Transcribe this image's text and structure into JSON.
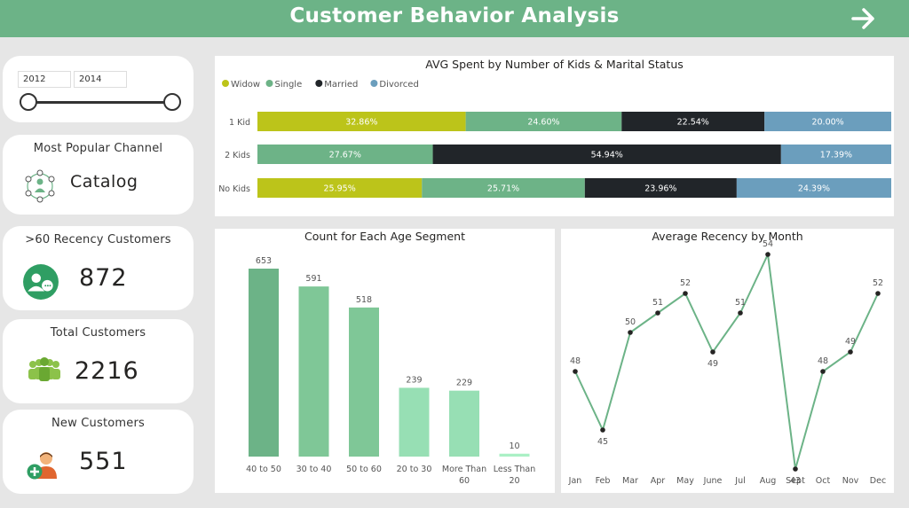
{
  "header": {
    "title": "Customer Behavior Analysis"
  },
  "colors": {
    "widow": "#bcc41a",
    "single": "#6db387",
    "married": "#212529",
    "divorced": "#6b9ebd",
    "bar_dark": "#6cb387",
    "bar_mid": "#7fc797",
    "bar_light": "#97dfb4",
    "bar_lightest": "#aaf0c5",
    "line": "#6cb387"
  },
  "slicer": {
    "start": "2012",
    "end": "2014"
  },
  "cards": {
    "channel": {
      "title": "Most Popular Channel",
      "value": "Catalog",
      "icon": "catalog-network-icon"
    },
    "recency": {
      "title": ">60 Recency Customers",
      "value": "872",
      "icon": "customer-service-icon"
    },
    "total": {
      "title": "Total Customers",
      "value": "2216",
      "icon": "people-group-icon"
    },
    "new": {
      "title": "New Customers",
      "value": "551",
      "icon": "add-user-icon"
    }
  },
  "chart_data": [
    {
      "type": "bar",
      "orientation": "horizontal-stacked-100",
      "title": "AVG Spent by Number of Kids & Marital Status",
      "legend_position": "top-left",
      "categories": [
        "1 Kid",
        "2 Kids",
        "No Kids"
      ],
      "series": [
        {
          "name": "Widow",
          "values": [
            32.86,
            0,
            25.95
          ],
          "labels": [
            "32.86%",
            "",
            "25.95%"
          ]
        },
        {
          "name": "Single",
          "values": [
            24.6,
            27.67,
            25.71
          ],
          "labels": [
            "24.60%",
            "27.67%",
            "25.71%"
          ]
        },
        {
          "name": "Married",
          "values": [
            22.54,
            54.94,
            23.96
          ],
          "labels": [
            "22.54%",
            "54.94%",
            "23.96%"
          ]
        },
        {
          "name": "Divorced",
          "values": [
            20.0,
            17.39,
            24.39
          ],
          "labels": [
            "20.00%",
            "17.39%",
            "24.39%"
          ]
        }
      ]
    },
    {
      "type": "bar",
      "title": "Count for Each Age Segment",
      "categories": [
        "40 to 50",
        "30 to 40",
        "50 to 60",
        "20 to 30",
        "More Than 60",
        "Less Than 20"
      ],
      "values": [
        653,
        591,
        518,
        239,
        229,
        10
      ],
      "ylim": [
        0,
        700
      ]
    },
    {
      "type": "line",
      "title": "Average Recency by Month",
      "categories": [
        "Jan",
        "Feb",
        "Mar",
        "Apr",
        "May",
        "June",
        "Jul",
        "Aug",
        "Sept",
        "Oct",
        "Nov",
        "Dec"
      ],
      "values": [
        48,
        45,
        50,
        51,
        52,
        49,
        51,
        54,
        43,
        48,
        49,
        52
      ],
      "ylim": [
        43,
        54
      ]
    }
  ]
}
